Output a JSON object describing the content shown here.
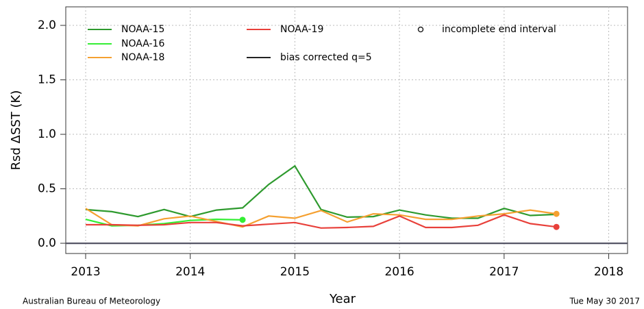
{
  "chart_data": {
    "type": "line",
    "x_label": "Year",
    "y_label": "Rsd ΔSST (K)",
    "footer_left": "Australian Bureau of Meteorology",
    "footer_right": "Tue May 30 2017",
    "end_marker_label": "incomplete end interval",
    "grid": true,
    "xlim": [
      2012.81,
      2018.18
    ],
    "ylim": [
      -0.094,
      2.17
    ],
    "xticks": [
      2013,
      2014,
      2015,
      2016,
      2017,
      2018
    ],
    "yticks": [
      {
        "value": 0,
        "label": "0.0"
      },
      {
        "value": 0.5,
        "label": "0.5"
      },
      {
        "value": 1,
        "label": "1.0"
      },
      {
        "value": 1.5,
        "label": "1.5"
      },
      {
        "value": 2,
        "label": "2.0"
      }
    ],
    "x": [
      2013,
      2013.25,
      2013.5,
      2013.75,
      2014,
      2014.25,
      2014.5,
      2014.75,
      2015,
      2015.25,
      2015.5,
      2015.75,
      2016,
      2016.25,
      2016.5,
      2016.75,
      2017,
      2017.25,
      2017.5
    ],
    "series": [
      {
        "name": "NOAA-15",
        "color": "#2e9a2e",
        "end_marker": false,
        "values": [
          0.31,
          0.29,
          0.245,
          0.31,
          0.245,
          0.305,
          0.325,
          0.54,
          0.71,
          0.31,
          0.24,
          0.245,
          0.305,
          0.26,
          0.23,
          0.23,
          0.32,
          0.255,
          0.265
        ]
      },
      {
        "name": "NOAA-16",
        "color": "#33ee33",
        "end_marker": true,
        "values": [
          0.22,
          0.16,
          0.165,
          0.18,
          0.21,
          0.22,
          0.215,
          null,
          null,
          null,
          null,
          null,
          null,
          null,
          null,
          null,
          null,
          null,
          null
        ]
      },
      {
        "name": "NOAA-18",
        "color": "#f5a030",
        "end_marker": true,
        "values": [
          0.32,
          0.17,
          0.16,
          0.225,
          0.25,
          0.2,
          0.15,
          0.25,
          0.23,
          0.3,
          0.195,
          0.27,
          0.26,
          0.22,
          0.22,
          0.25,
          0.27,
          0.305,
          0.27
        ]
      },
      {
        "name": "NOAA-19",
        "color": "#e8403a",
        "end_marker": true,
        "values": [
          0.17,
          0.17,
          0.165,
          0.17,
          0.19,
          0.19,
          0.16,
          0.175,
          0.19,
          0.14,
          0.145,
          0.155,
          0.25,
          0.145,
          0.145,
          0.165,
          0.26,
          0.18,
          0.15
        ]
      },
      {
        "name": "bias corrected q=5",
        "color": "#555566",
        "end_marker": false,
        "x": [
          2012.81,
          2018.18
        ],
        "values": [
          0,
          0
        ]
      }
    ]
  }
}
